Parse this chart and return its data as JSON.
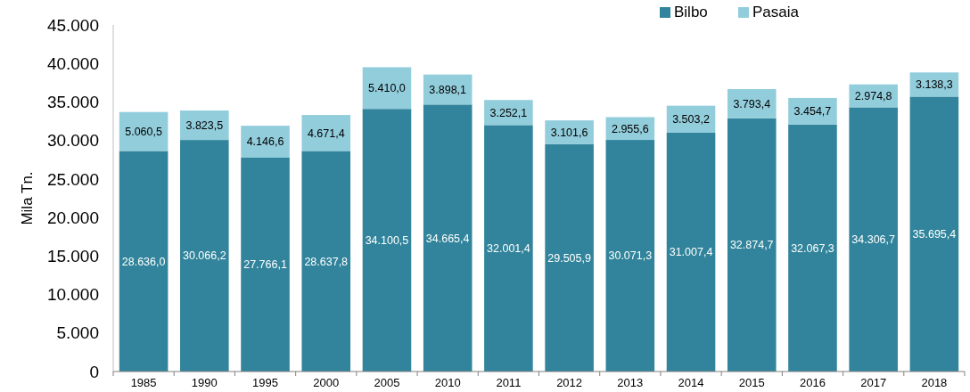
{
  "chart_data": {
    "type": "bar",
    "stacked": true,
    "ylabel": "Mila Tn.",
    "legend": "top",
    "grid": false,
    "categories": [
      "1985",
      "1990",
      "1995",
      "2000",
      "2005",
      "2010",
      "2011",
      "2012",
      "2013",
      "2014",
      "2015",
      "2016",
      "2017",
      "2018"
    ],
    "ylim": [
      0,
      45000
    ],
    "yticks": [
      0,
      {
        "value": 5000,
        "label": "5.000"
      },
      {
        "value": 10000,
        "label": "10.000"
      },
      {
        "value": 15000,
        "label": "15.000"
      },
      {
        "value": 20000,
        "label": "20.000"
      },
      {
        "value": 25000,
        "label": "25.000"
      },
      {
        "value": 30000,
        "label": "30.000"
      },
      {
        "value": 35000,
        "label": "35.000"
      },
      {
        "value": 40000,
        "label": "40.000"
      },
      {
        "value": 45000,
        "label": "45.000"
      }
    ],
    "series": [
      {
        "name": "Bilbo",
        "color": "#31849b",
        "values": [
          28636.0,
          30066.2,
          27766.1,
          28637.8,
          34100.5,
          34665.4,
          32001.4,
          29505.9,
          30071.3,
          31007.4,
          32874.7,
          32067.3,
          34306.7,
          35695.4
        ],
        "value_labels": [
          "28.636,0",
          "30.066,2",
          "27.766,1",
          "28.637,8",
          "34.100,5",
          "34.665,4",
          "32.001,4",
          "29.505,9",
          "30.071,3",
          "31.007,4",
          "32.874,7",
          "32.067,3",
          "34.306,7",
          "35.695,4"
        ]
      },
      {
        "name": "Pasaia",
        "color": "#92cddc",
        "values": [
          5060.5,
          3823.5,
          4146.6,
          4671.4,
          5410.0,
          3898.1,
          3252.1,
          3101.6,
          2955.6,
          3503.2,
          3793.4,
          3454.7,
          2974.8,
          3138.3
        ],
        "value_labels": [
          "5.060,5",
          "3.823,5",
          "4.146,6",
          "4.671,4",
          "5.410,0",
          "3.898,1",
          "3.252,1",
          "3.101,6",
          "2.955,6",
          "3.503,2",
          "3.793,4",
          "3.454,7",
          "2.974,8",
          "3.138,3"
        ]
      }
    ]
  }
}
